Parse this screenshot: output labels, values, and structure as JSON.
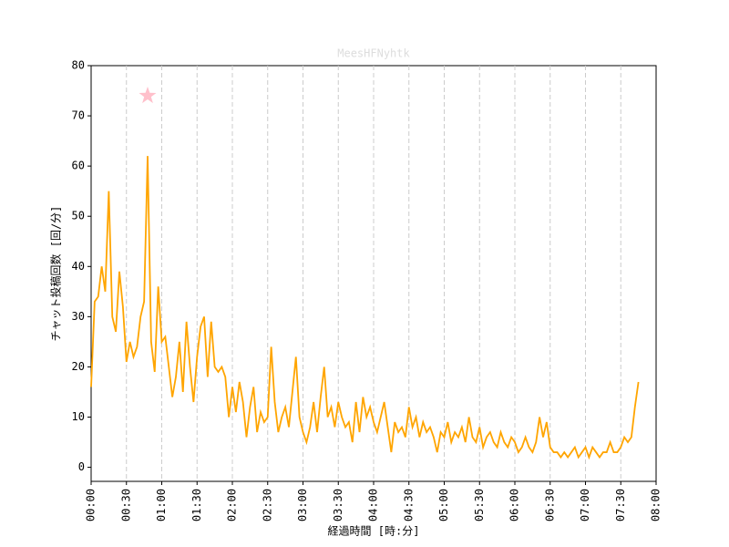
{
  "chart_data": {
    "type": "line",
    "title": "MeesHFNyhtk",
    "title_color": "#dddddd",
    "x_label": "経過時間 [時:分]",
    "y_label": "チャット投稿回数 [回/分]",
    "xlim": [
      0,
      480
    ],
    "ylim": [
      -2.8,
      80
    ],
    "xticks": [
      {
        "value": 0,
        "label": "00:00"
      },
      {
        "value": 30,
        "label": "00:30"
      },
      {
        "value": 60,
        "label": "01:00"
      },
      {
        "value": 90,
        "label": "01:30"
      },
      {
        "value": 120,
        "label": "02:00"
      },
      {
        "value": 150,
        "label": "02:30"
      },
      {
        "value": 180,
        "label": "03:00"
      },
      {
        "value": 210,
        "label": "03:30"
      },
      {
        "value": 240,
        "label": "04:00"
      },
      {
        "value": 270,
        "label": "04:30"
      },
      {
        "value": 300,
        "label": "05:00"
      },
      {
        "value": 330,
        "label": "05:30"
      },
      {
        "value": 360,
        "label": "06:00"
      },
      {
        "value": 390,
        "label": "06:30"
      },
      {
        "value": 420,
        "label": "07:00"
      },
      {
        "value": 450,
        "label": "07:30"
      },
      {
        "value": 480,
        "label": "08:00"
      }
    ],
    "yticks": [
      0,
      10,
      20,
      30,
      40,
      50,
      60,
      70,
      80
    ],
    "grid": "x",
    "x": [
      0,
      3,
      6,
      9,
      12,
      15,
      18,
      21,
      24,
      27,
      30,
      33,
      36,
      39,
      42,
      45,
      48,
      51,
      54,
      57,
      60,
      63,
      66,
      69,
      72,
      75,
      78,
      81,
      84,
      87,
      90,
      93,
      96,
      99,
      102,
      105,
      108,
      111,
      114,
      117,
      120,
      123,
      126,
      129,
      132,
      135,
      138,
      141,
      144,
      147,
      150,
      153,
      156,
      159,
      162,
      165,
      168,
      171,
      174,
      177,
      180,
      183,
      186,
      189,
      192,
      195,
      198,
      201,
      204,
      207,
      210,
      213,
      216,
      219,
      222,
      225,
      228,
      231,
      234,
      237,
      240,
      243,
      246,
      249,
      252,
      255,
      258,
      261,
      264,
      267,
      270,
      273,
      276,
      279,
      282,
      285,
      288,
      291,
      294,
      297,
      300,
      303,
      306,
      309,
      312,
      315,
      318,
      321,
      324,
      327,
      330,
      333,
      336,
      339,
      342,
      345,
      348,
      351,
      354,
      357,
      360,
      363,
      366,
      369,
      372,
      375,
      378,
      381,
      384,
      387,
      390,
      393,
      396,
      399,
      402,
      405,
      408,
      411,
      414,
      417,
      420,
      423,
      426,
      429,
      432,
      435,
      438,
      441,
      444,
      447,
      450,
      453,
      456,
      459,
      462,
      465
    ],
    "series": [
      {
        "name": "chat",
        "color": "orange",
        "values": [
          16,
          33,
          34,
          40,
          35,
          55,
          30,
          27,
          39,
          32,
          21,
          25,
          22,
          24,
          30,
          33,
          62,
          25,
          19,
          36,
          25,
          26,
          20,
          14,
          18,
          25,
          15,
          29,
          20,
          13,
          22,
          28,
          30,
          18,
          29,
          20,
          19,
          20,
          18,
          10,
          16,
          11,
          17,
          13,
          6,
          12,
          16,
          7,
          11,
          9,
          10,
          24,
          13,
          7,
          10,
          12,
          8,
          15,
          22,
          10,
          7,
          5,
          8,
          13,
          7,
          14,
          20,
          10,
          12,
          8,
          13,
          10,
          8,
          9,
          5,
          13,
          7,
          14,
          10,
          12,
          9,
          7,
          10,
          13,
          8,
          3,
          9,
          7,
          8,
          6,
          12,
          8,
          10,
          6,
          9,
          7,
          8,
          6,
          3,
          7,
          6,
          9,
          5,
          7,
          6,
          8,
          5,
          10,
          6,
          5,
          8,
          4,
          6,
          7,
          5,
          4,
          7,
          5,
          4,
          6,
          5,
          3,
          4,
          6,
          4,
          3,
          5,
          10,
          6,
          9,
          4,
          3,
          3,
          2,
          3,
          2,
          3,
          4,
          2,
          3,
          4,
          2,
          4,
          3,
          2,
          3,
          3,
          5,
          3,
          3,
          4,
          6,
          5,
          6,
          12,
          17
        ]
      }
    ],
    "peak_marker": {
      "x": 48,
      "y": 74,
      "color": "pink"
    }
  }
}
